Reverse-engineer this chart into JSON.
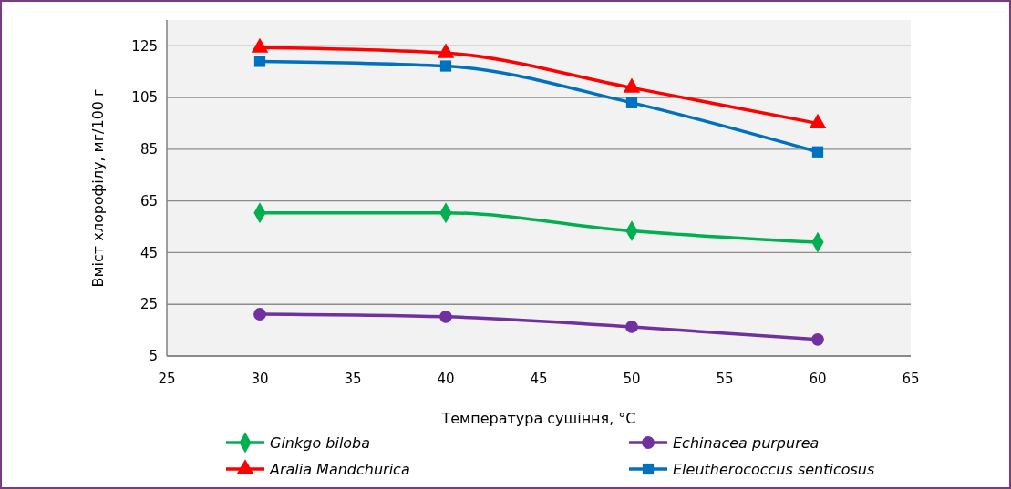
{
  "chart_data": {
    "type": "line",
    "xlabel": "Температура сушіння, °C",
    "ylabel": "Вміст хлорофілу, мг/100 г",
    "x": [
      30,
      40,
      50,
      60
    ],
    "series": [
      {
        "name": "Ginkgo biloba",
        "color": "#00b050",
        "marker": "diamond",
        "values": [
          60.4,
          60.4,
          53.4,
          49
        ]
      },
      {
        "name": "Echinacea purpurea",
        "color": "#7030a0",
        "marker": "circle",
        "values": [
          21.2,
          20.2,
          16.3,
          11.4
        ]
      },
      {
        "name": "Aralia Mandchurica",
        "color": "#ff0000",
        "marker": "triangle",
        "values": [
          124.3,
          122.2,
          108.8,
          95
        ]
      },
      {
        "name": "Eleutherococcus senticosus",
        "color": "#0070c0",
        "marker": "square",
        "values": [
          119,
          117.2,
          103,
          84
        ]
      }
    ],
    "xlim": [
      25,
      65
    ],
    "xticks": [
      25,
      30,
      35,
      40,
      45,
      50,
      55,
      60,
      65
    ],
    "ylim": [
      5,
      135
    ],
    "yticks": [
      5,
      25,
      45,
      65,
      85,
      105,
      125
    ],
    "grid": "y",
    "legend": "bottom",
    "line_style": "solid"
  }
}
